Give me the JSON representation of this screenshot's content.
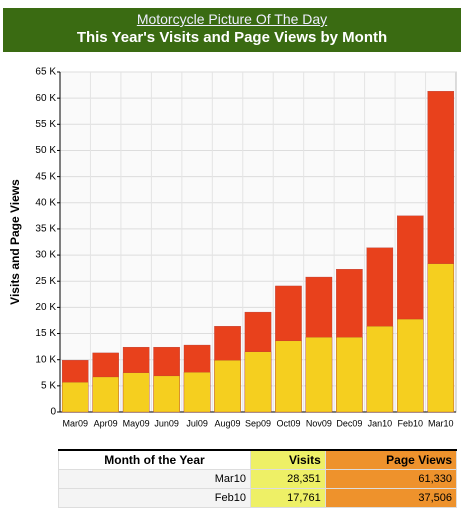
{
  "header": {
    "link": "Motorcycle Picture Of The Day"
  },
  "chart_data": {
    "type": "bar",
    "title": "This Year's Visits and Page Views by Month",
    "y_label": "Visits and Page Views",
    "categories": [
      "Mar09",
      "Apr09",
      "May09",
      "Jun09",
      "Jul09",
      "Aug09",
      "Sep09",
      "Oct09",
      "Nov09",
      "Dec09",
      "Jan10",
      "Feb10",
      "Mar10"
    ],
    "series": [
      {
        "name": "Page Views",
        "color": "#e8411c",
        "values": [
          9900,
          11300,
          12400,
          12400,
          12800,
          16400,
          19100,
          24100,
          25800,
          27300,
          31400,
          37506,
          61330
        ]
      },
      {
        "name": "Visits",
        "color": "#f5cf1f",
        "values": [
          5700,
          6700,
          7500,
          6900,
          7600,
          9900,
          11500,
          13600,
          14300,
          14300,
          16400,
          17761,
          28351
        ]
      }
    ],
    "ylim": [
      0,
      65000
    ],
    "yticks": [
      0,
      {
        "value": 5000,
        "label": "5 K"
      },
      {
        "value": 10000,
        "label": "10 K"
      },
      {
        "value": 15000,
        "label": "15 K"
      },
      {
        "value": 20000,
        "label": "20 K"
      },
      {
        "value": 25000,
        "label": "25 K"
      },
      {
        "value": 30000,
        "label": "30 K"
      },
      {
        "value": 35000,
        "label": "35 K"
      },
      {
        "value": 40000,
        "label": "40 K"
      },
      {
        "value": 45000,
        "label": "45 K"
      },
      {
        "value": 50000,
        "label": "50 K"
      },
      {
        "value": 55000,
        "label": "55 K"
      },
      {
        "value": 60000,
        "label": "60 K"
      },
      {
        "value": 65000,
        "label": "65 K"
      }
    ],
    "grid": true
  },
  "table": {
    "columns": [
      "Month of the Year",
      "Visits",
      "Page Views"
    ],
    "rows": [
      [
        "Mar10",
        "28,351",
        "61,330"
      ],
      [
        "Feb10",
        "17,761",
        "37,506"
      ]
    ]
  }
}
